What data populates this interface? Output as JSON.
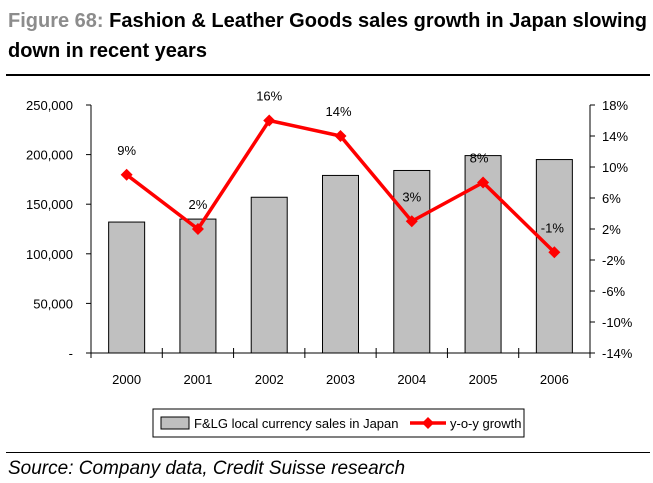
{
  "figure": {
    "label": "Figure 68:",
    "title": "Fashion & Leather Goods sales growth in Japan slowing down in recent years",
    "source": "Source: Company data, Credit Suisse research"
  },
  "chart_data": {
    "type": "bar",
    "categories": [
      "2000",
      "2001",
      "2002",
      "2003",
      "2004",
      "2005",
      "2006"
    ],
    "series": [
      {
        "name": "F&LG local currency sales in Japan",
        "type": "bar",
        "axis": "left",
        "values": [
          132000,
          135000,
          157000,
          179000,
          184000,
          199000,
          195000
        ]
      },
      {
        "name": "y-o-y growth",
        "type": "line",
        "axis": "right",
        "values": [
          9,
          2,
          16,
          14,
          3,
          8,
          -1
        ],
        "data_labels": [
          "9%",
          "2%",
          "16%",
          "14%",
          "3%",
          "8%",
          "-1%"
        ]
      }
    ],
    "y_left": {
      "ylim": [
        0,
        250000
      ],
      "ticks": [
        0,
        50000,
        100000,
        150000,
        200000,
        250000
      ],
      "tick_labels": [
        "-",
        "50,000",
        "100,000",
        "150,000",
        "200,000",
        "250,000"
      ]
    },
    "y_right": {
      "ylim": [
        -14,
        18
      ],
      "ticks": [
        -14,
        -10,
        -6,
        -2,
        2,
        6,
        10,
        14,
        18
      ],
      "tick_labels": [
        "-14%",
        "-10%",
        "-6%",
        "-2%",
        "2%",
        "6%",
        "10%",
        "14%",
        "18%"
      ]
    },
    "grid": false,
    "legend_position": "bottom",
    "colors": {
      "bar_fill": "#c0c0c0",
      "bar_stroke": "#000000",
      "line": "#ff0000"
    }
  }
}
